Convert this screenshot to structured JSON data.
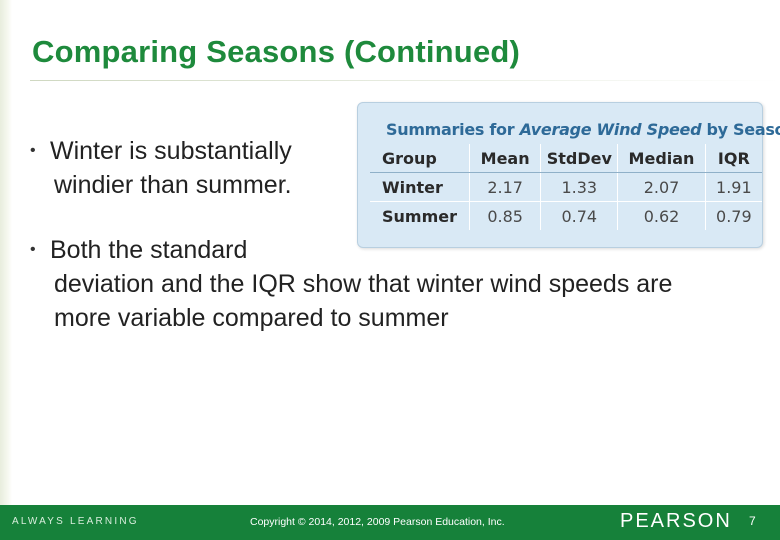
{
  "slide": {
    "title": "Comparing Seasons (Continued)",
    "bullet_glyph": "•",
    "bullets": [
      {
        "line1": "Winter is substantially",
        "line2": "windier than summer."
      },
      {
        "line1": "Both the standard",
        "line2": "deviation and the IQR show that winter wind speeds are more variable compared to summer"
      }
    ]
  },
  "table": {
    "title_prefix": "Summaries for ",
    "title_emphasis": "Average Wind Speed",
    "title_suffix": " by Season",
    "headers": [
      "Group",
      "Mean",
      "StdDev",
      "Median",
      "IQR"
    ],
    "rows": [
      [
        "Winter",
        "2.17",
        "1.33",
        "2.07",
        "1.91"
      ],
      [
        "Summer",
        "0.85",
        "0.74",
        "0.62",
        "0.79"
      ]
    ]
  },
  "footer": {
    "tagline": "ALWAYS LEARNING",
    "copyright": "Copyright © 2014, 2012, 2009 Pearson Education, Inc.",
    "brand": "PEARSON",
    "page_number": "7"
  },
  "colors": {
    "title_green": "#1e8a3c",
    "footer_green": "#16813a",
    "table_background": "#d9e9f5",
    "table_title_blue": "#2e6a98"
  }
}
